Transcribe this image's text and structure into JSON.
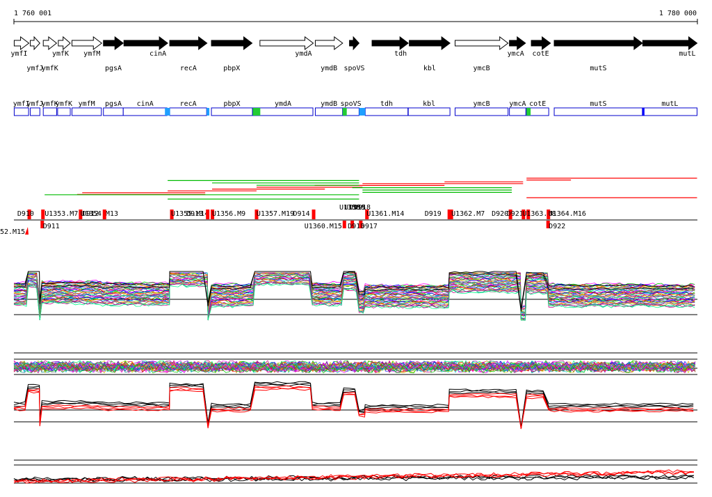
{
  "axis": {
    "start_label": "1 760 001",
    "end_label": "1 780 000",
    "start": 1760001,
    "end": 1780000
  },
  "genes": [
    {
      "name": "ymfI",
      "start": 1760010,
      "end": 1760440,
      "strand": 1,
      "fill": false,
      "label_row": "below"
    },
    {
      "name": "ymfJ",
      "start": 1760480,
      "end": 1760760,
      "strand": 1,
      "fill": false,
      "label_row": "lower"
    },
    {
      "name": "ymfK",
      "start": 1760860,
      "end": 1761250,
      "strand": 1,
      "fill": false,
      "label_row": "lower"
    },
    {
      "name": "ymfK",
      "start": 1761300,
      "end": 1761650,
      "strand": 1,
      "fill": false,
      "label_row": "below"
    },
    {
      "name": "ymfM",
      "start": 1761700,
      "end": 1762570,
      "strand": 1,
      "fill": false,
      "label_row": "below"
    },
    {
      "name": "pgsA",
      "start": 1762620,
      "end": 1763200,
      "strand": 1,
      "fill": true,
      "label_row": "lower"
    },
    {
      "name": "cinA",
      "start": 1763220,
      "end": 1764500,
      "strand": 1,
      "fill": true,
      "label_row": "below"
    },
    {
      "name": "recA",
      "start": 1764560,
      "end": 1765650,
      "strand": 1,
      "fill": true,
      "label_row": "lower"
    },
    {
      "name": "pbpX",
      "start": 1765780,
      "end": 1766970,
      "strand": 1,
      "fill": true,
      "label_row": "lower"
    },
    {
      "name": "ymdA",
      "start": 1767200,
      "end": 1768760,
      "strand": 1,
      "fill": false,
      "label_row": "below"
    },
    {
      "name": "ymdB",
      "start": 1768820,
      "end": 1769620,
      "strand": 1,
      "fill": false,
      "label_row": "lower"
    },
    {
      "name": "spoVS",
      "start": 1769820,
      "end": 1770100,
      "strand": 1,
      "fill": true,
      "label_row": "lower"
    },
    {
      "name": "tdh",
      "start": 1770480,
      "end": 1771540,
      "strand": 1,
      "fill": true,
      "label_row": "below"
    },
    {
      "name": "kbl",
      "start": 1771570,
      "end": 1772760,
      "strand": 1,
      "fill": true,
      "label_row": "lower"
    },
    {
      "name": "ymcB",
      "start": 1772910,
      "end": 1774460,
      "strand": 1,
      "fill": false,
      "label_row": "lower"
    },
    {
      "name": "ymcA",
      "start": 1774500,
      "end": 1774970,
      "strand": 1,
      "fill": true,
      "label_row": "below"
    },
    {
      "name": "cotE",
      "start": 1775140,
      "end": 1775700,
      "strand": 1,
      "fill": true,
      "label_row": "below"
    },
    {
      "name": "mutS",
      "start": 1775810,
      "end": 1778390,
      "strand": 1,
      "fill": true,
      "label_row": "lower"
    },
    {
      "name": "mutL",
      "start": 1778400,
      "end": 1779990,
      "strand": 1,
      "fill": true,
      "label_row": "below"
    }
  ],
  "gene_boxes": [
    {
      "name": "ymfI",
      "start": 1760010,
      "end": 1760430
    },
    {
      "name": "ymfJ",
      "start": 1760480,
      "end": 1760760
    },
    {
      "name": "ymfK",
      "start": 1760860,
      "end": 1761250
    },
    {
      "name": "ymfK",
      "start": 1761280,
      "end": 1761650
    },
    {
      "name": "ymfM",
      "start": 1761700,
      "end": 1762560
    },
    {
      "name": "pgsA",
      "start": 1762620,
      "end": 1763200
    },
    {
      "name": "cinA",
      "start": 1763200,
      "end": 1764480
    },
    {
      "name": "recA",
      "start": 1764560,
      "end": 1765640
    },
    {
      "name": "pbpX",
      "start": 1765780,
      "end": 1766980
    },
    {
      "name": "ymdA",
      "start": 1767000,
      "end": 1768750
    },
    {
      "name": "ymdB",
      "start": 1768820,
      "end": 1769620
    },
    {
      "name": "spoVS",
      "start": 1769620,
      "end": 1770100
    },
    {
      "name": "tdh",
      "start": 1770280,
      "end": 1771530
    },
    {
      "name": "kbl",
      "start": 1771540,
      "end": 1772760
    },
    {
      "name": "ymcB",
      "start": 1772910,
      "end": 1774460
    },
    {
      "name": "ymcA",
      "start": 1774500,
      "end": 1774980
    },
    {
      "name": "cotE",
      "start": 1775000,
      "end": 1775650
    },
    {
      "name": "mutS",
      "start": 1775810,
      "end": 1778390
    },
    {
      "name": "mutL",
      "start": 1778400,
      "end": 1779990
    }
  ],
  "box_highlights": [
    {
      "pos": 1764420,
      "width": 150,
      "color": "#1f9fff"
    },
    {
      "pos": 1765640,
      "width": 80,
      "color": "#1f9fff"
    },
    {
      "pos": 1766990,
      "width": 220,
      "color": "#22cc33"
    },
    {
      "pos": 1769620,
      "width": 120,
      "color": "#22cc33"
    },
    {
      "pos": 1770100,
      "width": 180,
      "color": "#1f9fff"
    },
    {
      "pos": 1775000,
      "width": 120,
      "color": "#22cc33"
    },
    {
      "pos": 1778390,
      "width": 40,
      "color": "#0000ff"
    }
  ],
  "transcripts_red": [
    {
      "start": 1761850,
      "end": 1765600,
      "lane": 1
    },
    {
      "start": 1762000,
      "end": 1765600,
      "lane": 2
    },
    {
      "start": 1764500,
      "end": 1767100,
      "lane": 3
    },
    {
      "start": 1765800,
      "end": 1769100,
      "lane": 4
    },
    {
      "start": 1767100,
      "end": 1770200,
      "lane": 5
    },
    {
      "start": 1768800,
      "end": 1772600,
      "lane": 6
    },
    {
      "start": 1770200,
      "end": 1774900,
      "lane": 7
    },
    {
      "start": 1772600,
      "end": 1774900,
      "lane": 8
    },
    {
      "start": 1775000,
      "end": 1776300,
      "lane": 9
    },
    {
      "start": 1775000,
      "end": 1779990,
      "lane": 10
    }
  ],
  "transcripts_green": [
    {
      "start": 1764500,
      "end": 1770100,
      "lane": 1
    },
    {
      "start": 1765800,
      "end": 1770100,
      "lane": 2
    },
    {
      "start": 1767100,
      "end": 1770100,
      "lane": 3
    },
    {
      "start": 1769900,
      "end": 1774570,
      "lane": 4
    },
    {
      "start": 1770200,
      "end": 1774570,
      "lane": 5
    },
    {
      "start": 1770200,
      "end": 1774570,
      "lane": 6
    },
    {
      "start": 1760900,
      "end": 1770100,
      "lane": 7
    }
  ],
  "segments": [
    {
      "label": "D910",
      "pos": 1760400,
      "up": true,
      "text_pos": 1760100
    },
    {
      "label": "U1353.M7",
      "pos": 1760800,
      "up": true,
      "text_pos": 1760900
    },
    {
      "label": "D911",
      "pos": 1760780,
      "up": false,
      "text_pos": 1760850
    },
    {
      "label": "U1354.M13",
      "pos": 1761900,
      "up": true,
      "text_pos": 1761950
    },
    {
      "label": "D912",
      "pos": 1762600,
      "up": true,
      "text_pos": 1762000
    },
    {
      "label": "U1355.M14",
      "pos": 1764570,
      "up": true,
      "text_pos": 1764600
    },
    {
      "label": "D913",
      "pos": 1765620,
      "up": true,
      "text_pos": 1765050
    },
    {
      "label": "U1356.M9",
      "pos": 1765760,
      "up": true,
      "text_pos": 1765800
    },
    {
      "label": "U1357.M19",
      "pos": 1767050,
      "up": true,
      "text_pos": 1767100
    },
    {
      "label": "D914",
      "pos": 1768720,
      "up": true,
      "text_pos": 1768170
    },
    {
      "label": "U1360.M15",
      "pos": 1769620,
      "up": false,
      "text_pos": 1768500
    },
    {
      "label": "D916",
      "pos": 1769850,
      "up": false,
      "text_pos": 1769770
    },
    {
      "label": "D917",
      "pos": 1770100,
      "up": false,
      "text_pos": 1770150
    },
    {
      "label": "U1361.M14",
      "pos": 1770280,
      "up": true,
      "text_pos": 1770320
    },
    {
      "label": "D919",
      "pos": 1772690,
      "up": true,
      "text_pos": 1772020
    },
    {
      "label": "U1362.M7",
      "pos": 1772750,
      "up": true,
      "text_pos": 1772800
    },
    {
      "label": "D920",
      "pos": 1774480,
      "up": true,
      "text_pos": 1773980
    },
    {
      "label": "D921",
      "pos": 1775000,
      "up": true,
      "text_pos": 1774420
    },
    {
      "label": "U1363.M8",
      "pos": 1774860,
      "up": true,
      "text_pos": 1774880
    },
    {
      "label": "U1364.M16",
      "pos": 1775590,
      "up": true,
      "text_pos": 1775640
    },
    {
      "label": "D922",
      "pos": 1775580,
      "up": false,
      "text_pos": 1775650
    }
  ],
  "segment_left_cut_label": "52.M15",
  "overlap_labels": [
    "U1358",
    "U1359",
    "D915",
    "D918"
  ],
  "blocks": [
    {
      "start": 1760001,
      "end": 1760420,
      "level": 0.55
    },
    {
      "start": 1760420,
      "end": 1760760,
      "level": 0.92
    },
    {
      "start": 1760760,
      "end": 1760820,
      "level": 0.2
    },
    {
      "start": 1760820,
      "end": 1762600,
      "level": 0.58
    },
    {
      "start": 1762600,
      "end": 1764560,
      "level": 0.55
    },
    {
      "start": 1764560,
      "end": 1765680,
      "level": 0.95
    },
    {
      "start": 1765680,
      "end": 1765780,
      "level": 0.15
    },
    {
      "start": 1765780,
      "end": 1767050,
      "level": 0.52
    },
    {
      "start": 1767050,
      "end": 1768730,
      "level": 0.98
    },
    {
      "start": 1768730,
      "end": 1769650,
      "level": 0.55
    },
    {
      "start": 1769650,
      "end": 1770100,
      "level": 0.85
    },
    {
      "start": 1770100,
      "end": 1770280,
      "level": 0.4
    },
    {
      "start": 1770280,
      "end": 1772740,
      "level": 0.5
    },
    {
      "start": 1772740,
      "end": 1774840,
      "level": 0.82
    },
    {
      "start": 1774840,
      "end": 1775000,
      "level": 0.05
    },
    {
      "start": 1775000,
      "end": 1775650,
      "level": 0.8
    },
    {
      "start": 1775650,
      "end": 1780000,
      "level": 0.52
    }
  ],
  "colors": {
    "red": "#ff0000",
    "green": "#00bb00",
    "blue": "#0000ff",
    "lightblue": "#00a0ff",
    "palette": [
      "#ff00ff",
      "#00cc00",
      "#0000ff",
      "#ff0000",
      "#00cccc",
      "#cccc00",
      "#8800cc",
      "#ff8800",
      "#888888",
      "#008888",
      "#cc0088",
      "#00ff88",
      "#4444ff",
      "#aa5500"
    ]
  }
}
